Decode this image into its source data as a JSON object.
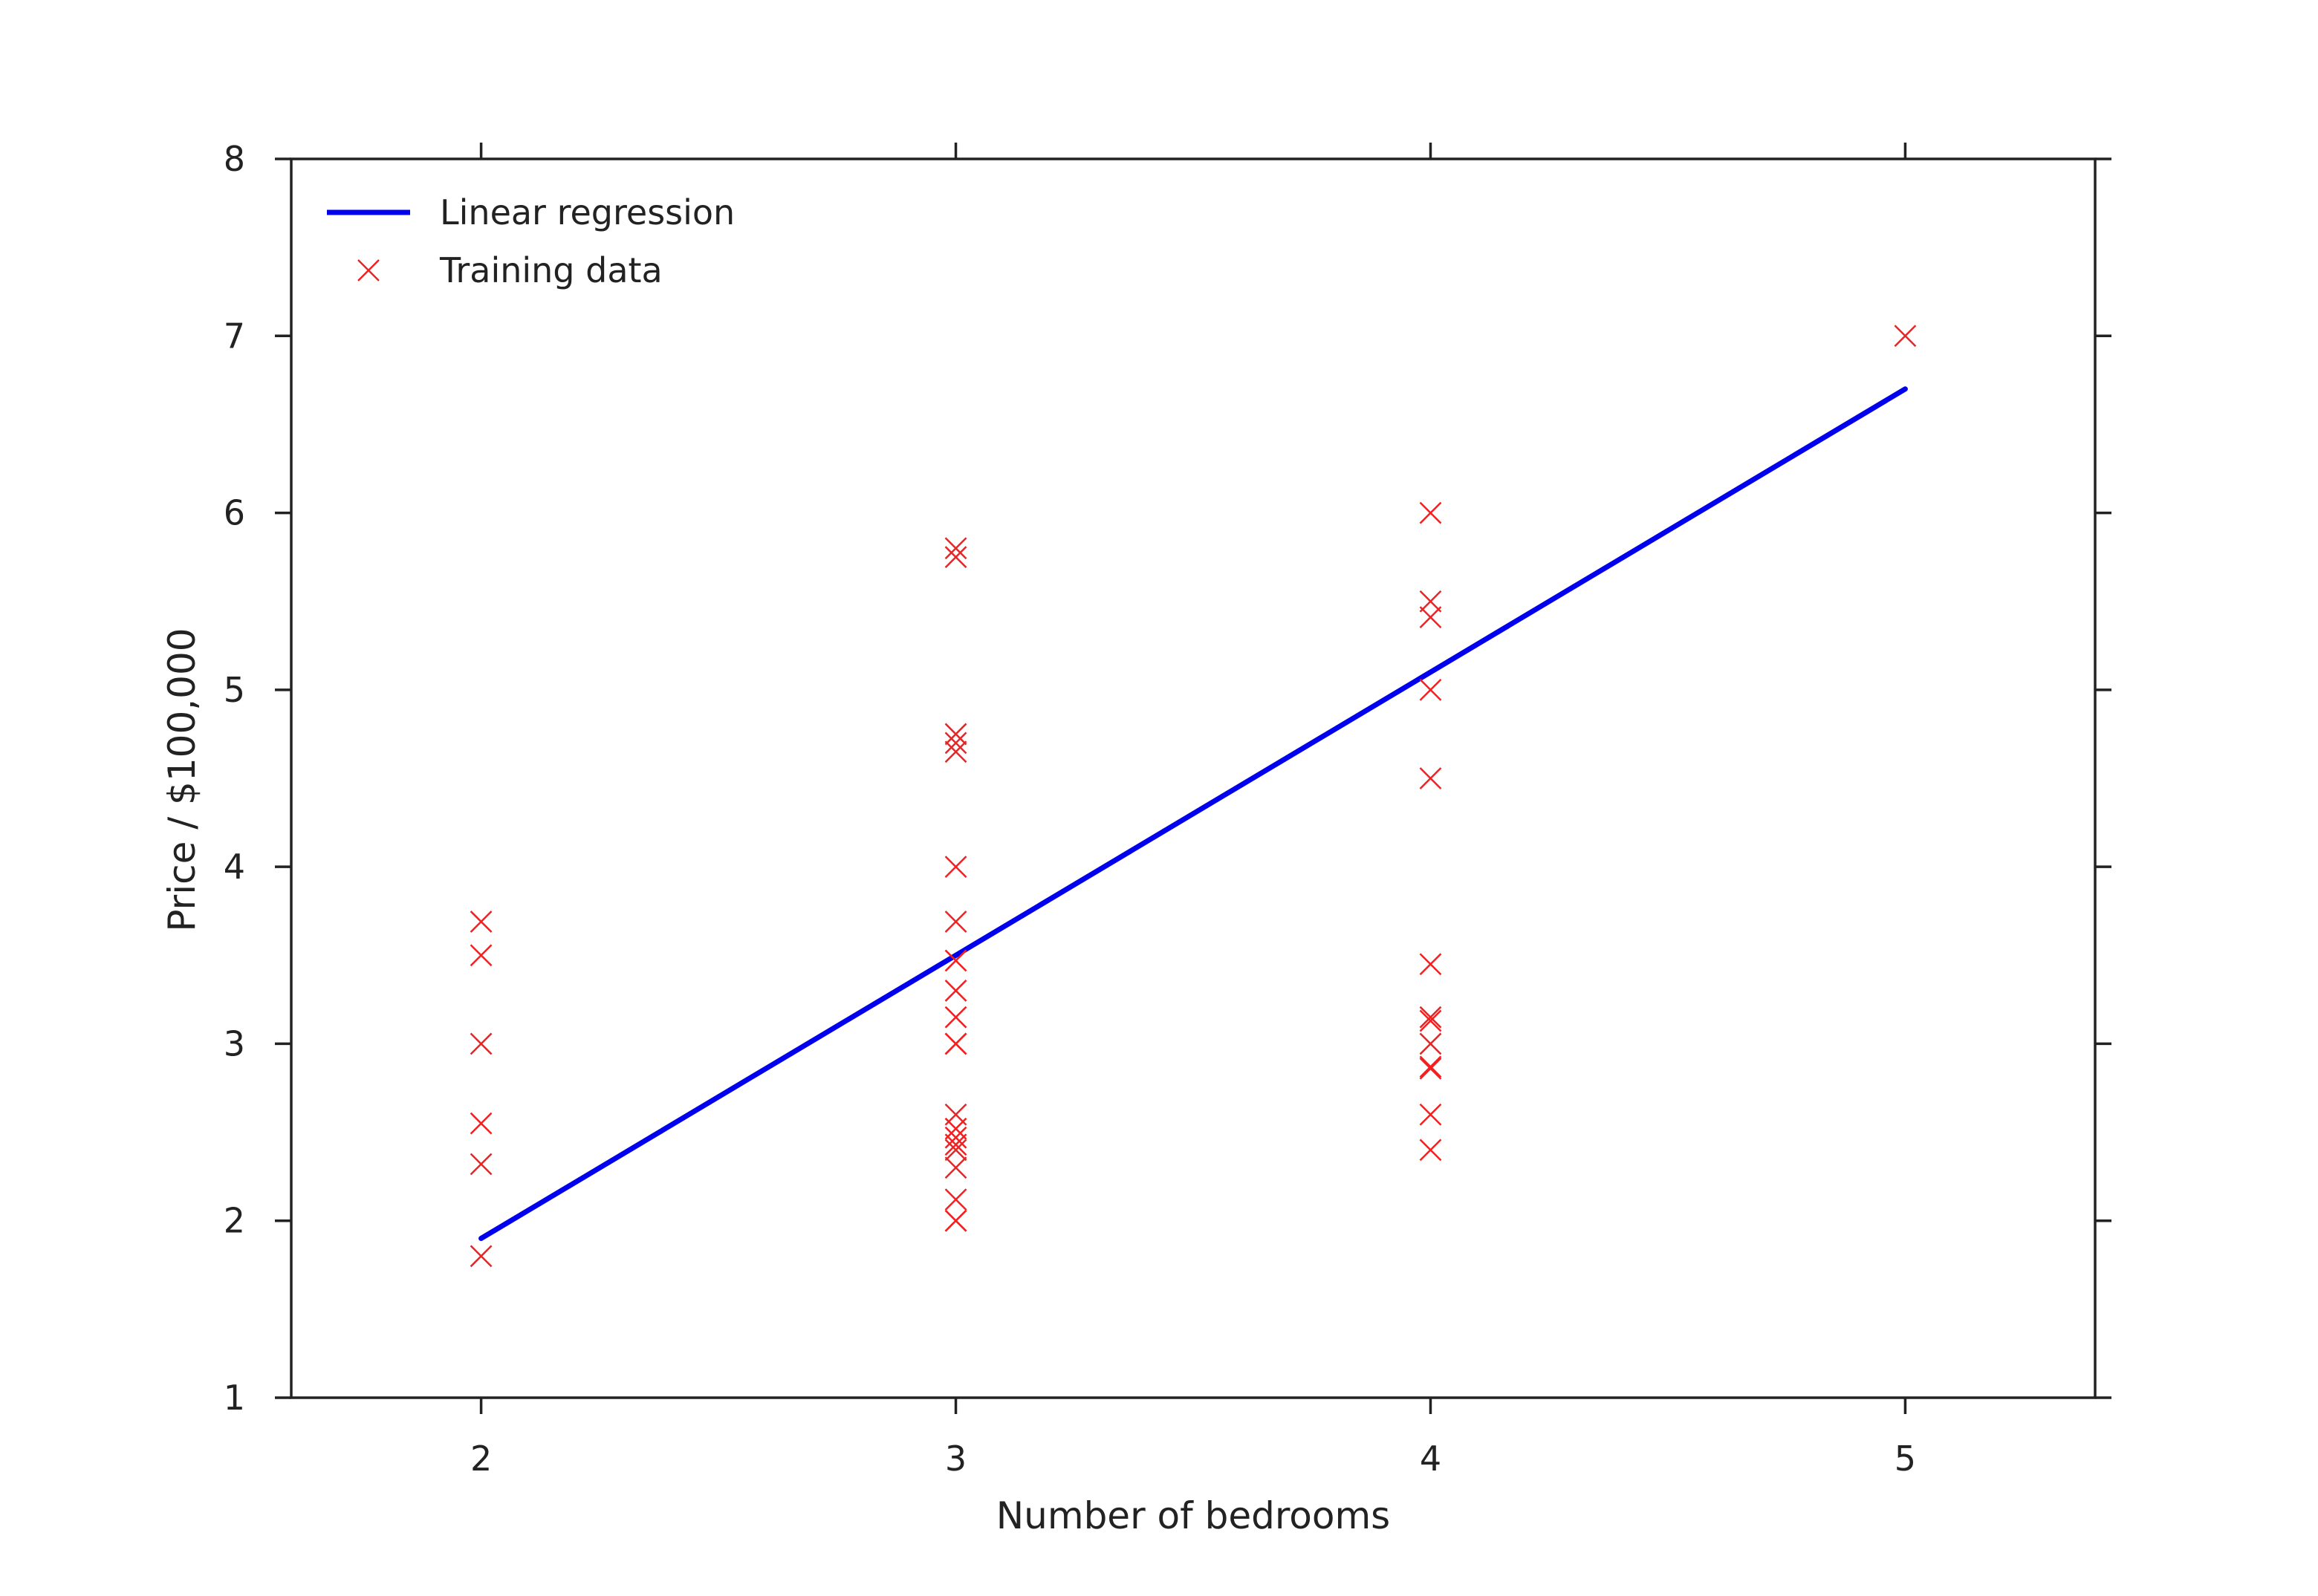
{
  "chart_data": {
    "type": "scatter",
    "title": "",
    "xlabel": "Number of bedrooms",
    "ylabel": "Price / $100,000",
    "xlim": [
      1.6,
      5.4
    ],
    "ylim": [
      1,
      8
    ],
    "xticks": [
      2,
      3,
      4,
      5
    ],
    "yticks": [
      1,
      2,
      3,
      4,
      5,
      6,
      7,
      8
    ],
    "grid": false,
    "legend": {
      "position": "top-left",
      "entries": [
        "Linear regression",
        "Training data"
      ]
    },
    "colors": {
      "regression": "#0000ee",
      "training": "#ee2222",
      "axes": "#222222"
    },
    "series": [
      {
        "name": "Linear regression",
        "kind": "line",
        "points": [
          [
            2,
            1.9
          ],
          [
            5,
            6.7
          ]
        ]
      },
      {
        "name": "Training data",
        "kind": "scatter",
        "marker": "x",
        "points": [
          [
            2,
            3.69
          ],
          [
            2,
            3.5
          ],
          [
            2,
            3.0
          ],
          [
            2,
            2.55
          ],
          [
            2,
            2.32
          ],
          [
            2,
            1.8
          ],
          [
            3,
            5.8
          ],
          [
            3,
            5.75
          ],
          [
            3,
            4.75
          ],
          [
            3,
            4.7
          ],
          [
            3,
            4.65
          ],
          [
            3,
            4.0
          ],
          [
            3,
            3.69
          ],
          [
            3,
            3.47
          ],
          [
            3,
            3.3
          ],
          [
            3,
            3.15
          ],
          [
            3,
            3.0
          ],
          [
            3,
            3.0
          ],
          [
            3,
            2.6
          ],
          [
            3,
            2.52
          ],
          [
            3,
            2.47
          ],
          [
            3,
            2.43
          ],
          [
            3,
            2.4
          ],
          [
            3,
            2.3
          ],
          [
            3,
            2.12
          ],
          [
            3,
            2.0
          ],
          [
            3,
            2.0
          ],
          [
            4,
            6.0
          ],
          [
            4,
            5.5
          ],
          [
            4,
            5.41
          ],
          [
            4,
            5.0
          ],
          [
            4,
            4.5
          ],
          [
            4,
            3.45
          ],
          [
            4,
            3.15
          ],
          [
            4,
            3.13
          ],
          [
            4,
            3.0
          ],
          [
            4,
            2.87
          ],
          [
            4,
            2.86
          ],
          [
            4,
            2.6
          ],
          [
            4,
            2.4
          ],
          [
            5,
            7.0
          ]
        ]
      }
    ]
  }
}
